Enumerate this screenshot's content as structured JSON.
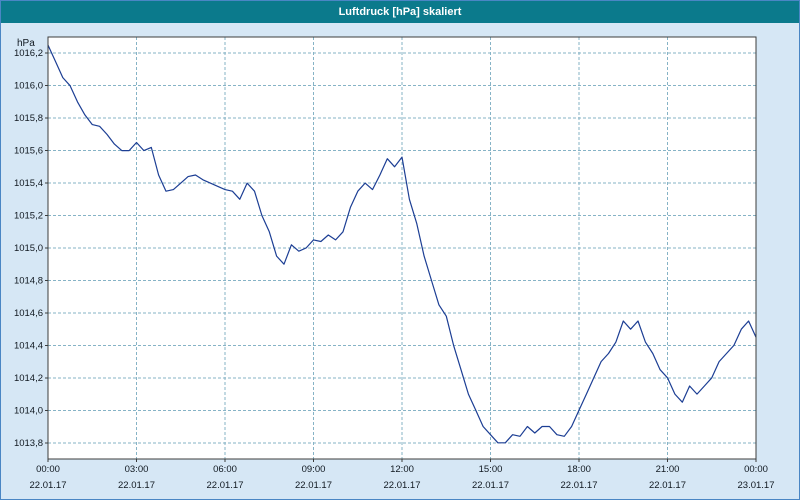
{
  "window": {
    "title": "Luftdruck [hPa] skaliert"
  },
  "colors": {
    "titlebar": "#0b7a8c",
    "title_text": "#ffffff",
    "bg": "#d6e7f5",
    "plotbg": "#ffffff",
    "grid": "#86b3c6",
    "axis": "#3c3c3c",
    "line": "#1c3e94",
    "text": "#101820",
    "window_border": "#4a86c4"
  },
  "chart_data": {
    "type": "line",
    "title": "Luftdruck [hPa] skaliert",
    "ylabel": "hPa",
    "xlabel": "",
    "xlim": [
      0,
      24
    ],
    "ylim": [
      1013.7,
      1016.3
    ],
    "grid": true,
    "legend": false,
    "y_ticks": [
      {
        "value": 1016.2,
        "label": "1016,2"
      },
      {
        "value": 1016.0,
        "label": "1016,0"
      },
      {
        "value": 1015.8,
        "label": "1015,8"
      },
      {
        "value": 1015.6,
        "label": "1015,6"
      },
      {
        "value": 1015.4,
        "label": "1015,4"
      },
      {
        "value": 1015.2,
        "label": "1015,2"
      },
      {
        "value": 1015.0,
        "label": "1015,0"
      },
      {
        "value": 1014.8,
        "label": "1014,8"
      },
      {
        "value": 1014.6,
        "label": "1014,6"
      },
      {
        "value": 1014.4,
        "label": "1014,4"
      },
      {
        "value": 1014.2,
        "label": "1014,2"
      },
      {
        "value": 1014.0,
        "label": "1014,0"
      },
      {
        "value": 1013.8,
        "label": "1013,8"
      }
    ],
    "x_ticks": [
      {
        "hour": 0,
        "time": "00:00",
        "date": "22.01.17"
      },
      {
        "hour": 3,
        "time": "03:00",
        "date": "22.01.17"
      },
      {
        "hour": 6,
        "time": "06:00",
        "date": "22.01.17"
      },
      {
        "hour": 9,
        "time": "09:00",
        "date": "22.01.17"
      },
      {
        "hour": 12,
        "time": "12:00",
        "date": "22.01.17"
      },
      {
        "hour": 15,
        "time": "15:00",
        "date": "22.01.17"
      },
      {
        "hour": 18,
        "time": "18:00",
        "date": "22.01.17"
      },
      {
        "hour": 21,
        "time": "21:00",
        "date": "22.01.17"
      },
      {
        "hour": 24,
        "time": "00:00",
        "date": "23.01.17"
      }
    ],
    "series": [
      {
        "name": "Luftdruck",
        "x_start": 0,
        "x_step": 0.25,
        "y": [
          1016.25,
          1016.15,
          1016.05,
          1016.0,
          1015.9,
          1015.82,
          1015.76,
          1015.75,
          1015.7,
          1015.64,
          1015.6,
          1015.6,
          1015.65,
          1015.6,
          1015.62,
          1015.45,
          1015.35,
          1015.36,
          1015.4,
          1015.44,
          1015.45,
          1015.42,
          1015.4,
          1015.38,
          1015.36,
          1015.35,
          1015.3,
          1015.4,
          1015.35,
          1015.2,
          1015.1,
          1014.95,
          1014.9,
          1015.02,
          1014.98,
          1015.0,
          1015.05,
          1015.04,
          1015.08,
          1015.05,
          1015.1,
          1015.25,
          1015.35,
          1015.4,
          1015.36,
          1015.45,
          1015.55,
          1015.5,
          1015.56,
          1015.3,
          1015.15,
          1014.95,
          1014.8,
          1014.65,
          1014.58,
          1014.4,
          1014.25,
          1014.1,
          1014.0,
          1013.9,
          1013.85,
          1013.8,
          1013.8,
          1013.85,
          1013.84,
          1013.9,
          1013.86,
          1013.9,
          1013.9,
          1013.85,
          1013.84,
          1013.9,
          1014.0,
          1014.1,
          1014.2,
          1014.3,
          1014.35,
          1014.42,
          1014.55,
          1014.5,
          1014.55,
          1014.42,
          1014.35,
          1014.25,
          1014.2,
          1014.1,
          1014.05,
          1014.15,
          1014.1,
          1014.15,
          1014.2,
          1014.3,
          1014.35,
          1014.4,
          1014.5,
          1014.55,
          1014.45
        ]
      }
    ]
  }
}
